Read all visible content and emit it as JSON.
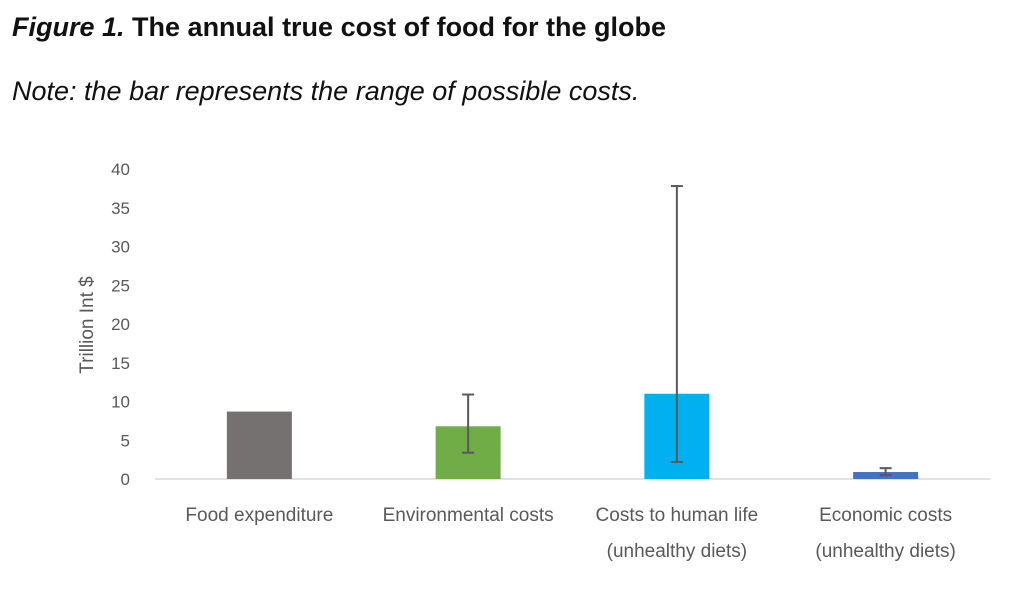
{
  "header": {
    "figure_label": "Figure 1.",
    "title": "The annual true cost of food for the globe",
    "note": "Note: the bar represents the range of possible costs."
  },
  "chart_data": {
    "type": "bar",
    "ylabel": "Trillion Int $",
    "ylim": [
      0,
      40
    ],
    "yticks": [
      0,
      5,
      10,
      15,
      20,
      25,
      30,
      35,
      40
    ],
    "grid": false,
    "categories": [
      [
        "Food expenditure"
      ],
      [
        "Environmental costs"
      ],
      [
        "Costs to human life",
        "(unhealthy diets)"
      ],
      [
        "Economic costs",
        "(unhealthy diets)"
      ]
    ],
    "values": [
      8.7,
      6.8,
      11.0,
      0.9
    ],
    "error_low": [
      null,
      3.4,
      2.2,
      0.5
    ],
    "error_high": [
      null,
      10.9,
      37.8,
      1.4
    ],
    "colors": [
      "#767171",
      "#70ad47",
      "#00b0f0",
      "#4472c4"
    ],
    "error_color": "#595959",
    "axis_color": "#d9d9d9"
  }
}
